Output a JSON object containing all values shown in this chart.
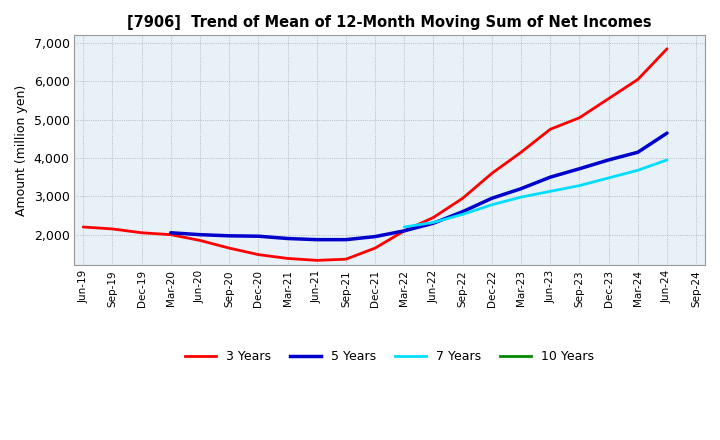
{
  "title": "[7906]  Trend of Mean of 12-Month Moving Sum of Net Incomes",
  "ylabel": "Amount (million yen)",
  "ylim": [
    1200,
    7200
  ],
  "yticks": [
    2000,
    3000,
    4000,
    5000,
    6000,
    7000
  ],
  "ytick_labels": [
    "2,000",
    "3,000",
    "4,000",
    "5,000",
    "6,000",
    "7,000"
  ],
  "background_color": "#ffffff",
  "plot_bg_color": "#e8f0f8",
  "grid_color": "#888888",
  "x_labels": [
    "Jun-19",
    "Sep-19",
    "Dec-19",
    "Mar-20",
    "Jun-20",
    "Sep-20",
    "Dec-20",
    "Mar-21",
    "Jun-21",
    "Sep-21",
    "Dec-21",
    "Mar-22",
    "Jun-22",
    "Sep-22",
    "Dec-22",
    "Mar-23",
    "Jun-23",
    "Sep-23",
    "Dec-23",
    "Mar-24",
    "Jun-24",
    "Sep-24"
  ],
  "series": {
    "3 Years": {
      "color": "#ff0000",
      "linewidth": 2.0,
      "values": [
        2200,
        2150,
        2050,
        2000,
        1850,
        1650,
        1480,
        1380,
        1330,
        1360,
        1650,
        2100,
        2450,
        2950,
        3600,
        4150,
        4750,
        5050,
        5550,
        6050,
        6850,
        null
      ]
    },
    "5 Years": {
      "color": "#0000cc",
      "linewidth": 2.5,
      "values": [
        null,
        null,
        null,
        2050,
        2000,
        1970,
        1960,
        1900,
        1870,
        1870,
        1950,
        2100,
        2300,
        2600,
        2950,
        3200,
        3500,
        3720,
        3950,
        4150,
        4650,
        null
      ]
    },
    "7 Years": {
      "color": "#00ddff",
      "linewidth": 2.0,
      "values": [
        null,
        null,
        null,
        null,
        null,
        null,
        null,
        null,
        null,
        null,
        null,
        2200,
        2320,
        2530,
        2780,
        2980,
        3130,
        3280,
        3480,
        3680,
        3950,
        null
      ]
    },
    "10 Years": {
      "color": "#008800",
      "linewidth": 2.0,
      "values": [
        null,
        null,
        null,
        null,
        null,
        null,
        null,
        null,
        null,
        null,
        null,
        null,
        null,
        null,
        null,
        null,
        null,
        null,
        null,
        null,
        null,
        null
      ]
    }
  },
  "legend_order": [
    "3 Years",
    "5 Years",
    "7 Years",
    "10 Years"
  ]
}
